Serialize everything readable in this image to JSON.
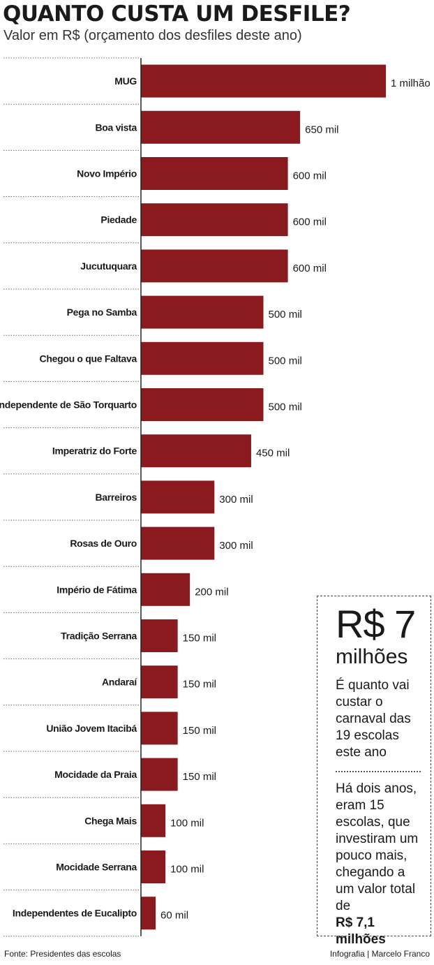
{
  "colors": {
    "bar": "#8b1a1e",
    "gridline": "#6a6a6a",
    "axis": "#222222"
  },
  "chart_data": {
    "type": "bar",
    "orientation": "horizontal",
    "title": "QUANTO CUSTA UM DESFILE?",
    "subtitle": "Valor em R$ (orçamento dos desfiles deste ano)",
    "categories": [
      "MUG",
      "Boa vista",
      "Novo Império",
      "Piedade",
      "Jucutuquara",
      "Pega no Samba",
      "Chegou o que Faltava",
      "Independente de São Torquarto",
      "Imperatriz do Forte",
      "Barreiros",
      "Rosas de Ouro",
      "Império de Fátima",
      "Tradição Serrana",
      "Andaraí",
      "União Jovem Itacibá",
      "Mocidade da Praia",
      "Chega Mais",
      "Mocidade Serrana",
      "Independentes de Eucalipto"
    ],
    "values": [
      1000000,
      650000,
      600000,
      600000,
      600000,
      500000,
      500000,
      500000,
      450000,
      300000,
      300000,
      200000,
      150000,
      150000,
      150000,
      150000,
      100000,
      100000,
      60000
    ],
    "value_labels": [
      "1 milhão",
      "650 mil",
      "600 mil",
      "600 mil",
      "600 mil",
      "500 mil",
      "500 mil",
      "500 mil",
      "450 mil",
      "300 mil",
      "300 mil",
      "200 mil",
      "150 mil",
      "150 mil",
      "150 mil",
      "150 mil",
      "100 mil",
      "100 mil",
      "60 mil"
    ],
    "xlim": [
      0,
      1000000
    ],
    "grid": true
  },
  "callout": {
    "value": "R$ 7",
    "unit": "milhões",
    "description": "É quanto vai custar o carnaval das 19 escolas este ano",
    "note": "Há dois anos, eram 15 escolas, que investiram um pouco mais, chegando a um valor total de",
    "note_bold": "R$ 7,1 milhões"
  },
  "footer": {
    "source": "Fonte: Presidentes das escolas",
    "credit": "Infografia | Marcelo Franco"
  }
}
